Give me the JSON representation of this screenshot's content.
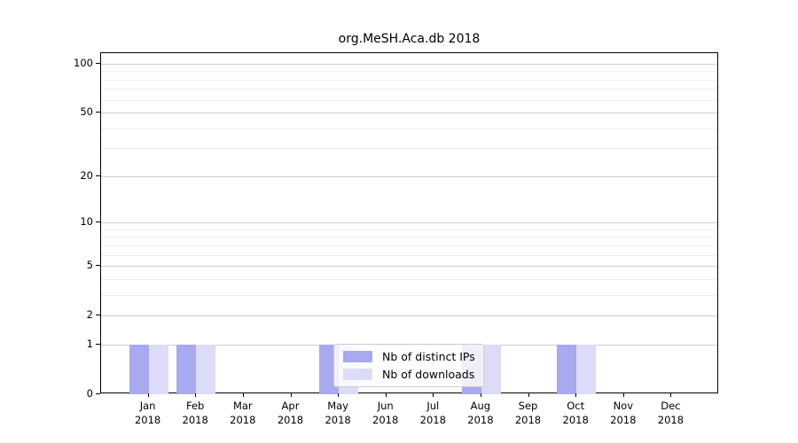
{
  "title": "org.MeSH.Aca.db 2018",
  "colors": {
    "background": "#ffffff",
    "axis": "#000000",
    "grid_major": "#cdcdcd",
    "grid_minor": "#efefef",
    "legend_border": "#cccccc",
    "distinct_ips": "#a9a9f0",
    "downloads": "#dcdcf8"
  },
  "legend": {
    "items": [
      {
        "label": "Nb of distinct IPs"
      },
      {
        "label": "Nb of downloads"
      }
    ]
  },
  "chart_data": {
    "type": "bar",
    "title": "org.MeSH.Aca.db 2018",
    "categories": [
      "Jan 2018",
      "Feb 2018",
      "Mar 2018",
      "Apr 2018",
      "May 2018",
      "Jun 2018",
      "Jul 2018",
      "Aug 2018",
      "Sep 2018",
      "Oct 2018",
      "Nov 2018",
      "Dec 2018"
    ],
    "series": [
      {
        "name": "Nb of distinct IPs",
        "color": "#a9a9f0",
        "values": [
          1,
          1,
          0,
          0,
          1,
          0,
          0,
          1,
          0,
          1,
          0,
          0
        ]
      },
      {
        "name": "Nb of downloads",
        "color": "#dcdcf8",
        "values": [
          1,
          1,
          0,
          0,
          1,
          0,
          0,
          1,
          0,
          1,
          0,
          0
        ]
      }
    ],
    "xlabel": "",
    "ylabel": "",
    "yscale": "log1p",
    "ylim": [
      0,
      116
    ],
    "yticks": [
      0,
      1,
      2,
      5,
      10,
      20,
      50,
      100
    ],
    "yticks_minor": [
      3,
      4,
      6,
      7,
      8,
      9,
      30,
      40,
      60,
      70,
      80,
      90
    ],
    "grid": true,
    "legend_position": "inside-bottom-center"
  }
}
